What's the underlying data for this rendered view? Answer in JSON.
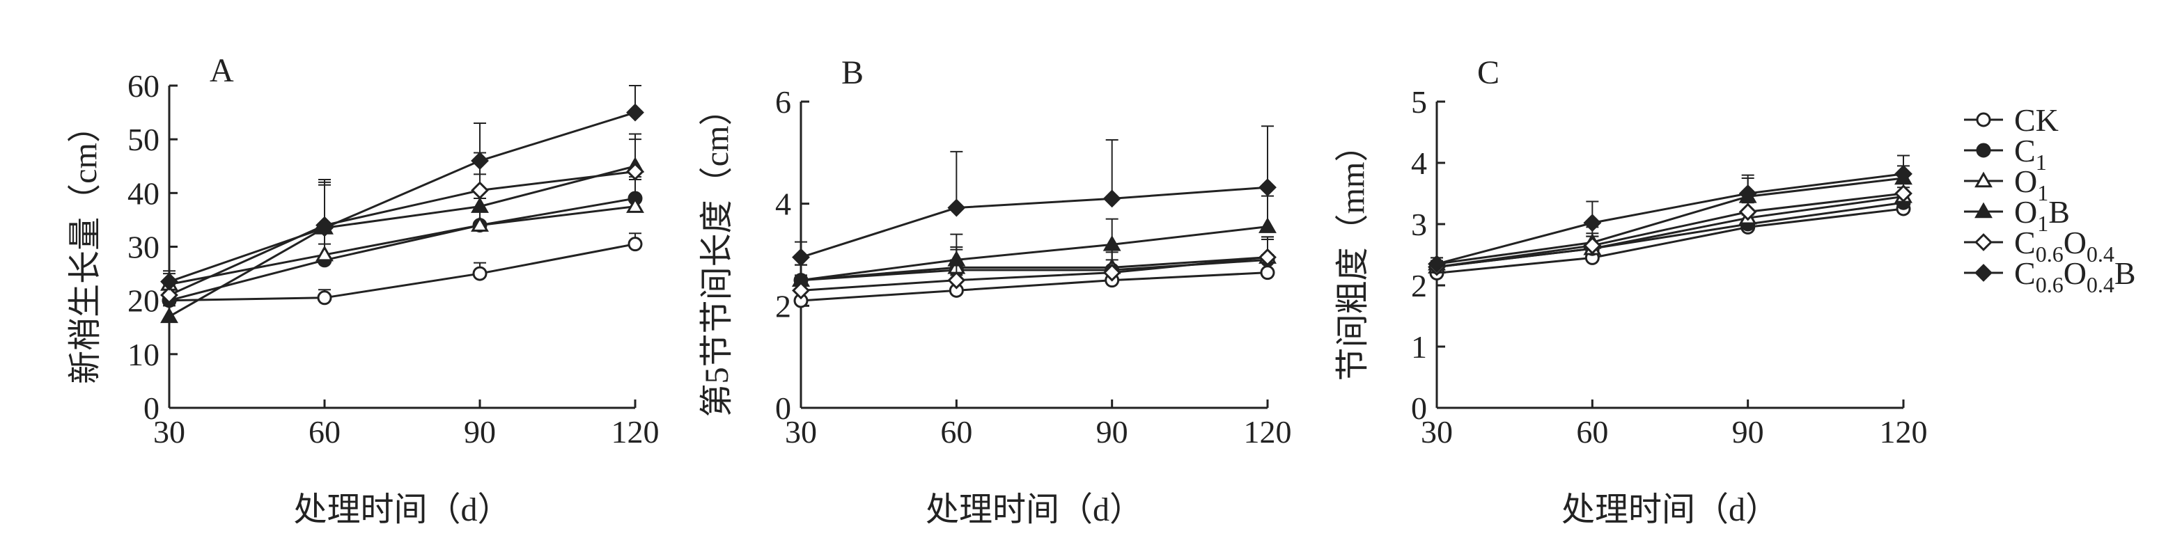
{
  "chart_data": [
    {
      "type": "line",
      "panel_label": "A",
      "xlabel": "处理时间（d）",
      "ylabel": "新梢生长量（cm）",
      "x": [
        30,
        60,
        90,
        120
      ],
      "xticks": [
        "30",
        "60",
        "90",
        "120"
      ],
      "ylim": [
        0,
        60
      ],
      "yticks": [
        "0",
        "10",
        "20",
        "30",
        "40",
        "50",
        "60"
      ],
      "series": [
        {
          "name": "CK",
          "values": [
            20,
            20.5,
            25,
            30.5
          ],
          "err": [
            1.5,
            1.5,
            2,
            2
          ]
        },
        {
          "name": "C1",
          "values": [
            20,
            27.5,
            34,
            39
          ],
          "err": [
            2,
            3,
            5,
            4
          ]
        },
        {
          "name": "O1",
          "values": [
            23,
            28.5,
            34,
            37.5
          ],
          "err": [
            2,
            4,
            5,
            5
          ]
        },
        {
          "name": "O1B",
          "values": [
            17,
            33.5,
            37.5,
            45
          ],
          "err": [
            2,
            8,
            6,
            6
          ]
        },
        {
          "name": "C0.6O0.4",
          "values": [
            21,
            34,
            40.5,
            44
          ],
          "err": [
            2,
            8,
            7,
            6
          ]
        },
        {
          "name": "C0.6O0.4B",
          "values": [
            23.5,
            33.5,
            46,
            55
          ],
          "err": [
            2,
            9,
            7,
            5
          ]
        }
      ]
    },
    {
      "type": "line",
      "panel_label": "B",
      "xlabel": "处理时间（d）",
      "ylabel": "第5节节间长度（cm）",
      "x": [
        30,
        60,
        90,
        120
      ],
      "xticks": [
        "30",
        "60",
        "90",
        "120"
      ],
      "ylim": [
        0,
        6
      ],
      "yticks": [
        "0",
        "2",
        "4",
        "6"
      ],
      "series": [
        {
          "name": "CK",
          "values": [
            2.1,
            2.3,
            2.5,
            2.65
          ],
          "err": [
            0.2,
            0.3,
            0.4,
            0.35
          ]
        },
        {
          "name": "C1",
          "values": [
            2.5,
            2.7,
            2.7,
            2.9
          ],
          "err": [
            0.3,
            0.4,
            0.4,
            0.4
          ]
        },
        {
          "name": "O1",
          "values": [
            2.5,
            2.75,
            2.75,
            2.95
          ],
          "err": [
            0.3,
            0.4,
            0.4,
            0.4
          ]
        },
        {
          "name": "O1B",
          "values": [
            2.5,
            2.9,
            3.2,
            3.55
          ],
          "err": [
            0.3,
            0.5,
            0.5,
            0.6
          ]
        },
        {
          "name": "C0.6O0.4",
          "values": [
            2.3,
            2.5,
            2.65,
            2.95
          ],
          "err": [
            0.3,
            0.4,
            0.4,
            0.4
          ]
        },
        {
          "name": "C0.6O0.4B",
          "values": [
            2.95,
            3.92,
            4.1,
            4.32
          ],
          "err": [
            0.3,
            1.1,
            1.15,
            1.2
          ]
        }
      ]
    },
    {
      "type": "line",
      "panel_label": "C",
      "xlabel": "处理时间（d）",
      "ylabel": "节间粗度（mm）",
      "x": [
        30,
        60,
        90,
        120
      ],
      "xticks": [
        "30",
        "60",
        "90",
        "120"
      ],
      "ylim": [
        0,
        5
      ],
      "yticks": [
        "0",
        "1",
        "2",
        "3",
        "4",
        "5"
      ],
      "series": [
        {
          "name": "CK",
          "values": [
            2.2,
            2.45,
            2.95,
            3.25
          ],
          "err": [
            0.1,
            0.2,
            0.2,
            0.1
          ]
        },
        {
          "name": "C1",
          "values": [
            2.3,
            2.6,
            3.0,
            3.35
          ],
          "err": [
            0.1,
            0.2,
            0.2,
            0.15
          ]
        },
        {
          "name": "O1",
          "values": [
            2.3,
            2.6,
            3.1,
            3.45
          ],
          "err": [
            0.1,
            0.2,
            0.25,
            0.15
          ]
        },
        {
          "name": "O1B",
          "values": [
            2.35,
            2.7,
            3.45,
            3.75
          ],
          "err": [
            0.1,
            0.25,
            0.3,
            0.2
          ]
        },
        {
          "name": "C0.6O0.4",
          "values": [
            2.3,
            2.65,
            3.2,
            3.5
          ],
          "err": [
            0.1,
            0.2,
            0.3,
            0.2
          ]
        },
        {
          "name": "C0.6O0.4B",
          "values": [
            2.35,
            3.02,
            3.5,
            3.82
          ],
          "err": [
            0.1,
            0.35,
            0.3,
            0.3
          ]
        }
      ]
    }
  ],
  "legend": {
    "placement": "right",
    "items": [
      {
        "marker": "open-circle",
        "base": "CK",
        "sub1": "",
        "mid": "",
        "sub2": ""
      },
      {
        "marker": "filled-circle",
        "base": "C",
        "sub1": "1",
        "mid": "",
        "sub2": ""
      },
      {
        "marker": "open-triangle",
        "base": "O",
        "sub1": "1",
        "mid": "",
        "sub2": ""
      },
      {
        "marker": "filled-triangle",
        "base": "O",
        "sub1": "1",
        "mid": "B",
        "sub2": ""
      },
      {
        "marker": "open-diamond",
        "base": "C",
        "sub1": "0.6",
        "mid": "O",
        "sub2": "0.4"
      },
      {
        "marker": "filled-diamond",
        "base": "C",
        "sub1": "0.6",
        "mid": "O",
        "sub2": "0.4",
        "tail": "B"
      }
    ]
  },
  "colors": {
    "ink": "#222222",
    "background": "#ffffff"
  }
}
